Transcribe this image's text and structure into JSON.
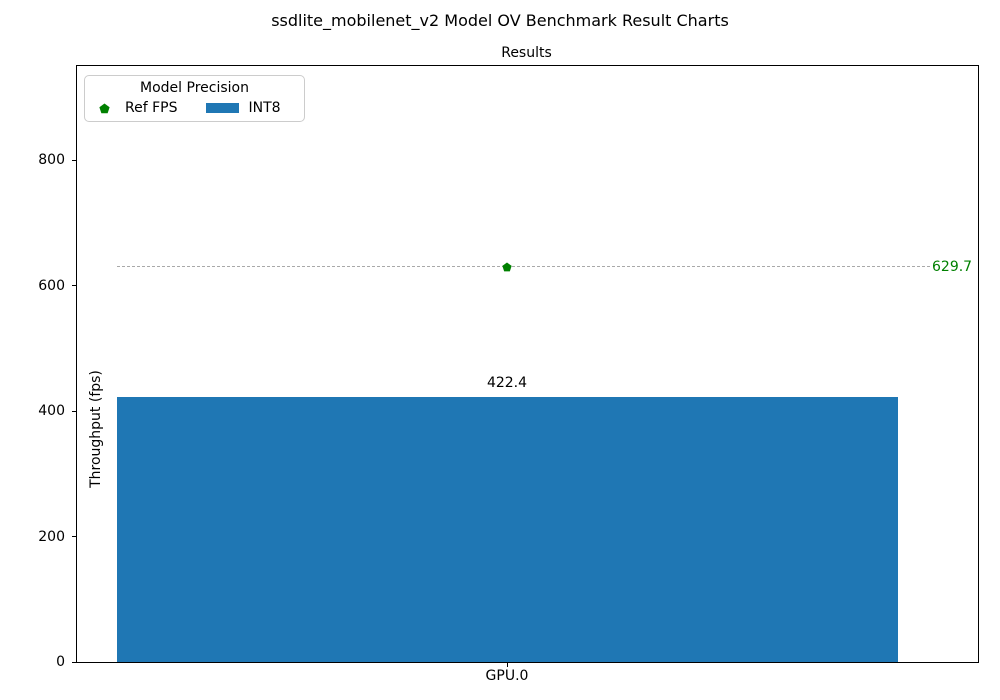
{
  "figure": {
    "suptitle": "ssdlite_mobilenet_v2 Model OV Benchmark Result Charts"
  },
  "chart_data": {
    "type": "bar",
    "title": "Results",
    "xlabel": "",
    "ylabel": "Throughput (fps)",
    "categories": [
      "GPU.0"
    ],
    "series": [
      {
        "name": "INT8",
        "kind": "bar",
        "values": [
          422.4
        ],
        "color": "#1f77b4",
        "value_labels": [
          "422.4"
        ]
      },
      {
        "name": "Ref FPS",
        "kind": "reference-line",
        "values": [
          629.7
        ],
        "marker": "pentagon",
        "marker_color": "#008000",
        "line_color": "#a9a9a9",
        "line_style": "dashed",
        "value_labels": [
          "629.7"
        ],
        "label_color": "#008000"
      }
    ],
    "yticks": [
      0,
      200,
      400,
      600,
      800
    ],
    "ylim": [
      0,
      950
    ],
    "grid": false,
    "legend": {
      "title": "Model Precision",
      "position": "upper left",
      "entries": [
        {
          "label": "Ref FPS",
          "symbol": "pentagon",
          "color": "#008000"
        },
        {
          "label": "INT8",
          "symbol": "rect",
          "color": "#1f77b4"
        }
      ]
    }
  }
}
